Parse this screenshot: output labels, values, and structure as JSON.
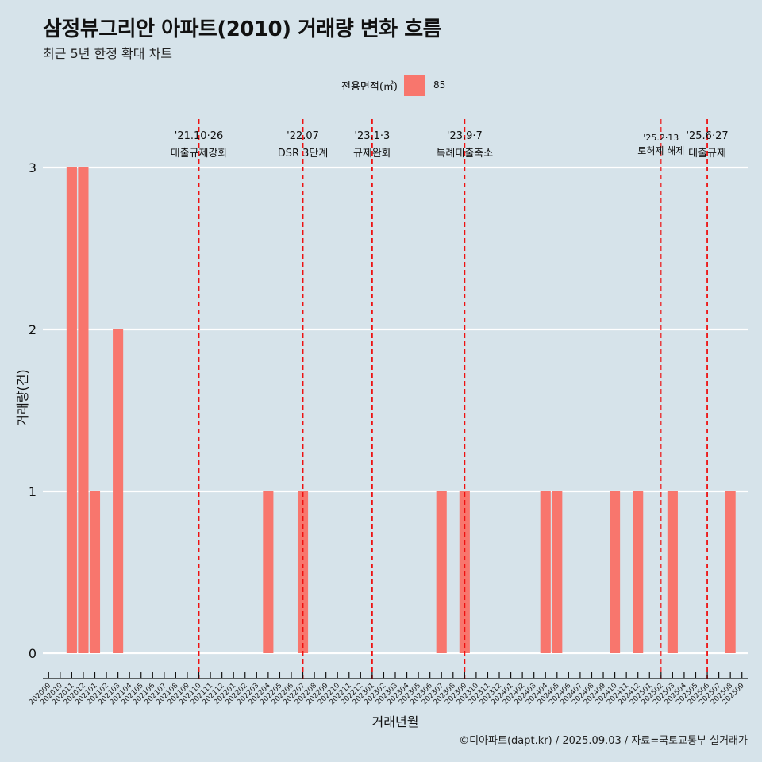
{
  "title": "삼정뷰그리안 아파트(2010) 거래량 변화 흐름",
  "subtitle": "최근 5년 한정 확대 차트",
  "caption": "©디아파트(dapt.kr) / 2025.09.03 / 자료=국토교통부 실거래가",
  "legend": {
    "title": "전용면적(㎡)",
    "entries": [
      {
        "label": "85",
        "color": "#f8766d"
      }
    ]
  },
  "chart_data": {
    "type": "bar",
    "xlabel": "거래년월",
    "ylabel": "거래량(건)",
    "ylim": [
      0,
      3
    ],
    "yticks": [
      0,
      1,
      2,
      3
    ],
    "bar_color": "#f8766d",
    "categories": [
      "202009",
      "202010",
      "202011",
      "202012",
      "202101",
      "202102",
      "202103",
      "202104",
      "202105",
      "202106",
      "202107",
      "202108",
      "202109",
      "202110",
      "202111",
      "202112",
      "202201",
      "202202",
      "202203",
      "202204",
      "202205",
      "202206",
      "202207",
      "202208",
      "202209",
      "202210",
      "202211",
      "202212",
      "202301",
      "202302",
      "202303",
      "202304",
      "202305",
      "202306",
      "202307",
      "202308",
      "202309",
      "202310",
      "202311",
      "202312",
      "202401",
      "202402",
      "202403",
      "202404",
      "202405",
      "202406",
      "202407",
      "202408",
      "202409",
      "202410",
      "202411",
      "202412",
      "202501",
      "202502",
      "202503",
      "202504",
      "202505",
      "202506",
      "202507",
      "202508",
      "202509"
    ],
    "series": [
      {
        "name": "85",
        "values": [
          0,
          0,
          3,
          3,
          1,
          0,
          2,
          0,
          0,
          0,
          0,
          0,
          0,
          0,
          0,
          0,
          0,
          0,
          0,
          1,
          0,
          0,
          1,
          0,
          0,
          0,
          0,
          0,
          0,
          0,
          0,
          0,
          0,
          0,
          1,
          0,
          1,
          0,
          0,
          0,
          0,
          0,
          0,
          1,
          1,
          0,
          0,
          0,
          0,
          1,
          0,
          1,
          0,
          0,
          1,
          0,
          0,
          0,
          0,
          1,
          0
        ]
      }
    ],
    "annotations": [
      {
        "month": "202110",
        "date": "'21.10·26",
        "label": "대출규제강화"
      },
      {
        "month": "202207",
        "date": "'22.07",
        "label": "DSR 3단계"
      },
      {
        "month": "202301",
        "date": "'23.1·3",
        "label": "규제완화"
      },
      {
        "month": "202309",
        "date": "'23.9·7",
        "label": "특례대출축소"
      },
      {
        "month": "202502",
        "date": "'25.2·13",
        "label": "토허제 해제"
      },
      {
        "month": "202506",
        "date": "'25.6·27",
        "label": "대출규제"
      }
    ]
  }
}
